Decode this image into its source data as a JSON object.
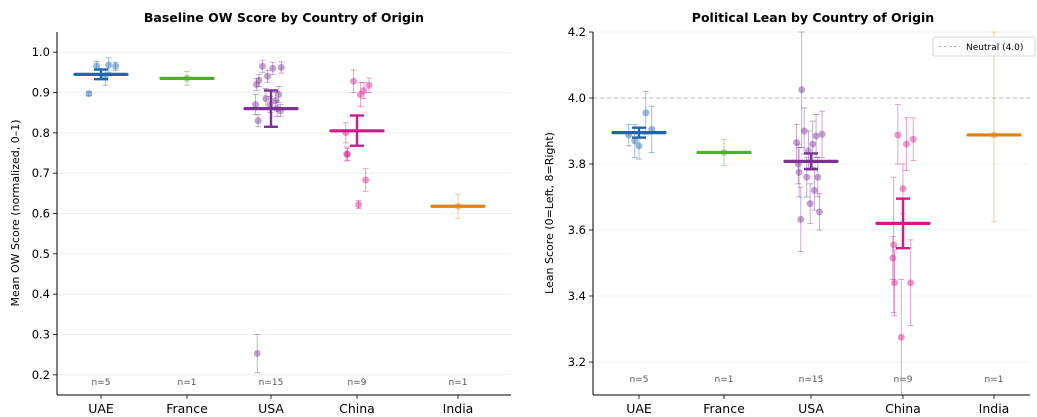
{
  "colors": {
    "UAE": "#2166ac",
    "France": "#4daf2a",
    "USA": "#7b3294",
    "China": "#d01c8b",
    "India": "#e08214",
    "axis": "#000000",
    "grid": "#ebebeb",
    "neutral_line": "#bbbbbb",
    "n_label": "#555555"
  },
  "chart_data": [
    {
      "type": "scatter",
      "title": "Baseline OW Score by Country of Origin",
      "xlabel": "",
      "ylabel": "Mean OW Score (normalized, 0–1)",
      "categories": [
        "UAE",
        "France",
        "USA",
        "China",
        "India"
      ],
      "ylim": [
        0.15,
        1.05
      ],
      "yticks": [
        0.2,
        0.3,
        0.4,
        0.5,
        0.6,
        0.7,
        0.8,
        0.9,
        1.0
      ],
      "ytick_labels": [
        "0.2",
        "0.3",
        "0.4",
        "0.5",
        "0.6",
        "0.7",
        "0.8",
        "0.9",
        "1.0"
      ],
      "grid": "y",
      "n_labels": [
        "n=5",
        "n=1",
        "n=15",
        "n=9",
        "n=1"
      ],
      "means": [
        0.945,
        0.935,
        0.86,
        0.805,
        0.618
      ],
      "mean_ci": [
        [
          0.933,
          0.957
        ],
        null,
        [
          0.815,
          0.905
        ],
        [
          0.768,
          0.843
        ],
        null
      ],
      "points": [
        {
          "cat": 0,
          "dx": -0.14,
          "y": 0.897,
          "lo": 0.892,
          "hi": 0.902
        },
        {
          "cat": 0,
          "dx": -0.05,
          "y": 0.966,
          "lo": 0.955,
          "hi": 0.977
        },
        {
          "cat": 0,
          "dx": 0.05,
          "y": 0.938,
          "lo": 0.918,
          "hi": 0.958
        },
        {
          "cat": 0,
          "dx": 0.09,
          "y": 0.968,
          "lo": 0.95,
          "hi": 0.986
        },
        {
          "cat": 0,
          "dx": 0.17,
          "y": 0.965,
          "lo": 0.955,
          "hi": 0.975
        },
        {
          "cat": 1,
          "dx": 0.0,
          "y": 0.935,
          "lo": 0.918,
          "hi": 0.952
        },
        {
          "cat": 2,
          "dx": -0.16,
          "y": 0.253,
          "lo": 0.205,
          "hi": 0.3
        },
        {
          "cat": 2,
          "dx": -0.18,
          "y": 0.87,
          "lo": 0.845,
          "hi": 0.895
        },
        {
          "cat": 2,
          "dx": -0.15,
          "y": 0.83,
          "lo": 0.815,
          "hi": 0.845
        },
        {
          "cat": 2,
          "dx": -0.17,
          "y": 0.92,
          "lo": 0.905,
          "hi": 0.935
        },
        {
          "cat": 2,
          "dx": -0.14,
          "y": 0.93,
          "lo": 0.915,
          "hi": 0.945
        },
        {
          "cat": 2,
          "dx": -0.1,
          "y": 0.965,
          "lo": 0.95,
          "hi": 0.98
        },
        {
          "cat": 2,
          "dx": -0.06,
          "y": 0.885,
          "lo": 0.86,
          "hi": 0.91
        },
        {
          "cat": 2,
          "dx": -0.04,
          "y": 0.94,
          "lo": 0.925,
          "hi": 0.955
        },
        {
          "cat": 2,
          "dx": -0.01,
          "y": 0.87,
          "lo": 0.85,
          "hi": 0.89
        },
        {
          "cat": 2,
          "dx": 0.02,
          "y": 0.96,
          "lo": 0.945,
          "hi": 0.975
        },
        {
          "cat": 2,
          "dx": 0.05,
          "y": 0.88,
          "lo": 0.86,
          "hi": 0.9
        },
        {
          "cat": 2,
          "dx": 0.07,
          "y": 0.86,
          "lo": 0.84,
          "hi": 0.88
        },
        {
          "cat": 2,
          "dx": 0.09,
          "y": 0.895,
          "lo": 0.875,
          "hi": 0.915
        },
        {
          "cat": 2,
          "dx": 0.12,
          "y": 0.962,
          "lo": 0.948,
          "hi": 0.976
        },
        {
          "cat": 2,
          "dx": 0.11,
          "y": 0.855,
          "lo": 0.84,
          "hi": 0.87
        },
        {
          "cat": 3,
          "dx": -0.12,
          "y": 0.747,
          "lo": 0.73,
          "hi": 0.765
        },
        {
          "cat": 3,
          "dx": -0.13,
          "y": 0.8,
          "lo": 0.775,
          "hi": 0.825
        },
        {
          "cat": 3,
          "dx": -0.11,
          "y": 0.747,
          "lo": 0.732,
          "hi": 0.762
        },
        {
          "cat": 3,
          "dx": -0.04,
          "y": 0.928,
          "lo": 0.9,
          "hi": 0.956
        },
        {
          "cat": 3,
          "dx": 0.02,
          "y": 0.622,
          "lo": 0.612,
          "hi": 0.632
        },
        {
          "cat": 3,
          "dx": 0.04,
          "y": 0.895,
          "lo": 0.865,
          "hi": 0.925
        },
        {
          "cat": 3,
          "dx": 0.08,
          "y": 0.905,
          "lo": 0.885,
          "hi": 0.925
        },
        {
          "cat": 3,
          "dx": 0.1,
          "y": 0.683,
          "lo": 0.655,
          "hi": 0.711
        },
        {
          "cat": 3,
          "dx": 0.14,
          "y": 0.918,
          "lo": 0.9,
          "hi": 0.936
        },
        {
          "cat": 4,
          "dx": 0.0,
          "y": 0.618,
          "lo": 0.588,
          "hi": 0.648
        }
      ]
    },
    {
      "type": "scatter",
      "title": "Political Lean by Country of Origin",
      "xlabel": "",
      "ylabel": "Lean Score (0=Left, 8=Right)",
      "categories": [
        "UAE",
        "France",
        "USA",
        "China",
        "India"
      ],
      "ylim": [
        3.1,
        4.2
      ],
      "yticks": [
        3.2,
        3.4,
        3.6,
        3.8,
        4.0,
        4.2
      ],
      "ytick_labels": [
        "3.2",
        "3.4",
        "3.6",
        "3.8",
        "4.0",
        "4.2"
      ],
      "grid": "y",
      "legend": {
        "label": "Neutral (4.0)",
        "position": "top-right"
      },
      "reference_line": 4.0,
      "n_labels": [
        "n=5",
        "n=1",
        "n=15",
        "n=9",
        "n=1"
      ],
      "means": [
        3.895,
        3.835,
        3.808,
        3.62,
        3.888
      ],
      "mean_ci": [
        [
          3.88,
          3.91
        ],
        null,
        [
          3.785,
          3.832
        ],
        [
          3.545,
          3.695
        ],
        null
      ],
      "points": [
        {
          "cat": 0,
          "dx": -0.12,
          "y": 3.888,
          "lo": 3.855,
          "hi": 3.92
        },
        {
          "cat": 0,
          "dx": -0.05,
          "y": 3.87,
          "lo": 3.82,
          "hi": 3.92
        },
        {
          "cat": 0,
          "dx": 0.0,
          "y": 3.855,
          "lo": 3.815,
          "hi": 3.895
        },
        {
          "cat": 0,
          "dx": 0.08,
          "y": 3.955,
          "lo": 3.89,
          "hi": 4.02
        },
        {
          "cat": 0,
          "dx": 0.15,
          "y": 3.905,
          "lo": 3.835,
          "hi": 3.975
        },
        {
          "cat": 1,
          "dx": 0.0,
          "y": 3.835,
          "lo": 3.795,
          "hi": 3.875
        },
        {
          "cat": 2,
          "dx": -0.17,
          "y": 3.865,
          "lo": 3.81,
          "hi": 3.92
        },
        {
          "cat": 2,
          "dx": -0.15,
          "y": 3.8,
          "lo": 3.74,
          "hi": 3.86
        },
        {
          "cat": 2,
          "dx": -0.14,
          "y": 3.775,
          "lo": 3.7,
          "hi": 3.85
        },
        {
          "cat": 2,
          "dx": -0.12,
          "y": 3.632,
          "lo": 3.535,
          "hi": 3.73
        },
        {
          "cat": 2,
          "dx": -0.11,
          "y": 4.025,
          "lo": 3.85,
          "hi": 4.2
        },
        {
          "cat": 2,
          "dx": -0.08,
          "y": 3.9,
          "lo": 3.83,
          "hi": 3.97
        },
        {
          "cat": 2,
          "dx": -0.05,
          "y": 3.76,
          "lo": 3.7,
          "hi": 3.82
        },
        {
          "cat": 2,
          "dx": -0.03,
          "y": 3.84,
          "lo": 3.78,
          "hi": 3.9
        },
        {
          "cat": 2,
          "dx": -0.01,
          "y": 3.68,
          "lo": 3.62,
          "hi": 3.74
        },
        {
          "cat": 2,
          "dx": 0.02,
          "y": 3.86,
          "lo": 3.79,
          "hi": 3.93
        },
        {
          "cat": 2,
          "dx": 0.04,
          "y": 3.72,
          "lo": 3.66,
          "hi": 3.78
        },
        {
          "cat": 2,
          "dx": 0.06,
          "y": 3.885,
          "lo": 3.82,
          "hi": 3.95
        },
        {
          "cat": 2,
          "dx": 0.08,
          "y": 3.76,
          "lo": 3.7,
          "hi": 3.82
        },
        {
          "cat": 2,
          "dx": 0.1,
          "y": 3.655,
          "lo": 3.6,
          "hi": 3.71
        },
        {
          "cat": 2,
          "dx": 0.13,
          "y": 3.89,
          "lo": 3.82,
          "hi": 3.96
        },
        {
          "cat": 3,
          "dx": -0.12,
          "y": 3.515,
          "lo": 3.45,
          "hi": 3.58
        },
        {
          "cat": 3,
          "dx": -0.11,
          "y": 3.555,
          "lo": 3.35,
          "hi": 3.76
        },
        {
          "cat": 3,
          "dx": -0.1,
          "y": 3.44,
          "lo": 3.34,
          "hi": 3.54
        },
        {
          "cat": 3,
          "dx": -0.06,
          "y": 3.888,
          "lo": 3.8,
          "hi": 3.98
        },
        {
          "cat": 3,
          "dx": -0.02,
          "y": 3.275,
          "lo": 3.1,
          "hi": 3.45
        },
        {
          "cat": 3,
          "dx": 0.0,
          "y": 3.725,
          "lo": 3.65,
          "hi": 3.8
        },
        {
          "cat": 3,
          "dx": 0.04,
          "y": 3.86,
          "lo": 3.78,
          "hi": 3.94
        },
        {
          "cat": 3,
          "dx": 0.09,
          "y": 3.44,
          "lo": 3.31,
          "hi": 3.57
        },
        {
          "cat": 3,
          "dx": 0.12,
          "y": 3.875,
          "lo": 3.81,
          "hi": 3.94
        },
        {
          "cat": 4,
          "dx": 0.0,
          "y": 3.888,
          "lo": 3.625,
          "hi": 4.2
        }
      ]
    }
  ]
}
